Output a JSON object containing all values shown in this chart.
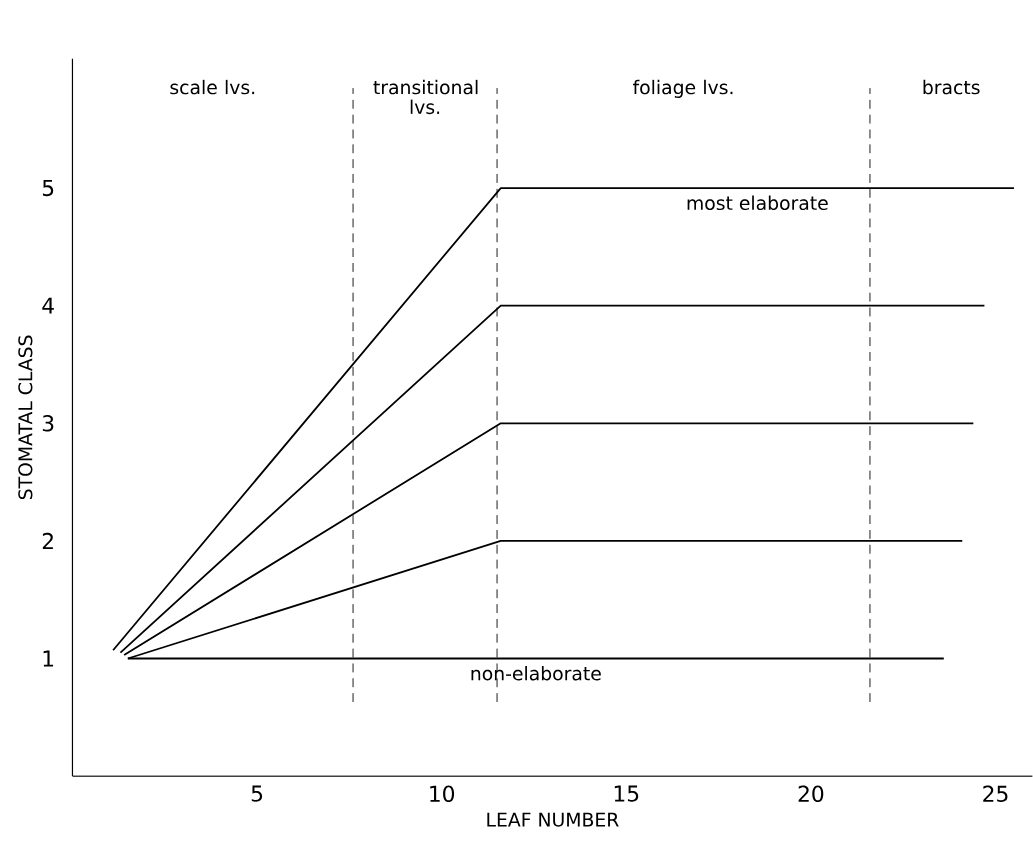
{
  "chart_data": {
    "type": "line",
    "xlabel": "LEAF NUMBER",
    "ylabel": "STOMATAL CLASS",
    "xlim": [
      0,
      26
    ],
    "ylim": [
      0,
      6.1
    ],
    "xticks": [
      5,
      10,
      15,
      20,
      25
    ],
    "yticks": [
      1,
      2,
      3,
      4,
      5
    ],
    "grid": false,
    "marker": "none",
    "line_style": "solid",
    "series": [
      {
        "name": "most elaborate",
        "color": "#000000",
        "x": [
          1.1,
          11.6,
          25.5
        ],
        "values": [
          1.07,
          5,
          5
        ]
      },
      {
        "color": "#000000",
        "x": [
          1.3,
          11.6,
          24.7
        ],
        "values": [
          1.05,
          4,
          4
        ]
      },
      {
        "color": "#000000",
        "x": [
          1.4,
          11.6,
          24.4
        ],
        "values": [
          1.03,
          3,
          3
        ]
      },
      {
        "color": "#000000",
        "x": [
          1.5,
          11.6,
          24.1
        ],
        "values": [
          1.0,
          2,
          2
        ]
      },
      {
        "name": "non-elaborate",
        "color": "#000000",
        "x": [
          1.5,
          23.6
        ],
        "values": [
          1,
          1
        ]
      }
    ],
    "ref_lines": [
      {
        "axis": "x",
        "value": 7.6,
        "color": "#000000",
        "line_style": "dashed"
      },
      {
        "axis": "x",
        "value": 11.5,
        "color": "#000000",
        "line_style": "dashed"
      },
      {
        "axis": "x",
        "value": 21.6,
        "color": "#000000",
        "line_style": "dashed"
      }
    ],
    "annotations": [
      "scale lvs.",
      "transitional lvs.",
      "foliage lvs.",
      "bracts"
    ]
  }
}
